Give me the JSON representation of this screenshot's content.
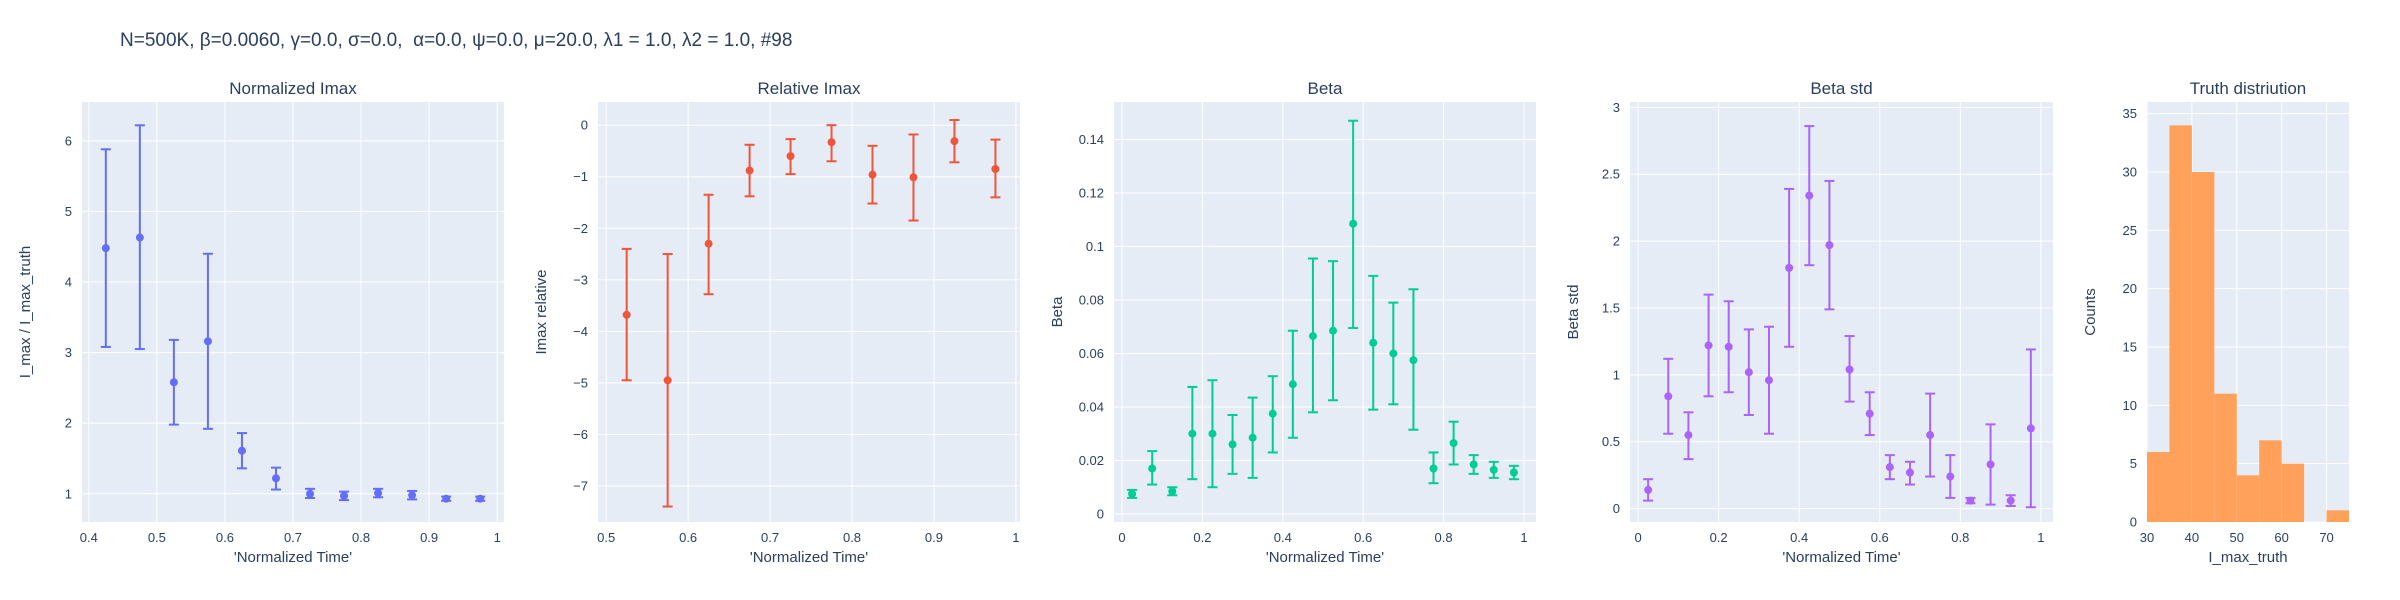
{
  "figure": {
    "title": "N=500K, β=0.0060, γ=0.0, σ=0.0,  α=0.0, ψ=0.0, μ=20.0, λ1 = 1.0, λ2 = 1.0, #98"
  },
  "style": {
    "plot_bg": "#e5ecf6",
    "grid": "#ffffff",
    "text": "#2a3f5f"
  },
  "chart_data": [
    {
      "type": "scatter",
      "title": "Normalized Imax",
      "xlabel": "'Normalized Time'",
      "ylabel": "I_max / I_max_truth",
      "color": "#636efa",
      "xlim": [
        0.39,
        1.01
      ],
      "ylim": [
        0.6,
        6.55
      ],
      "xticks": [
        0.4,
        0.5,
        0.6,
        0.7,
        0.8,
        0.9,
        1
      ],
      "xtick_labels": [
        "0.4",
        "0.5",
        "0.6",
        "0.7",
        "0.8",
        "0.9",
        "1"
      ],
      "yticks": [
        1,
        2,
        3,
        4,
        5,
        6
      ],
      "ytick_labels": [
        "1",
        "2",
        "3",
        "4",
        "5",
        "6"
      ],
      "error_bars": true,
      "points": [
        {
          "x": 0.425,
          "y": 4.48,
          "lo": 3.08,
          "hi": 5.88
        },
        {
          "x": 0.475,
          "y": 4.63,
          "lo": 3.05,
          "hi": 6.22
        },
        {
          "x": 0.525,
          "y": 2.58,
          "lo": 1.98,
          "hi": 3.18
        },
        {
          "x": 0.575,
          "y": 3.16,
          "lo": 1.92,
          "hi": 4.4
        },
        {
          "x": 0.625,
          "y": 1.61,
          "lo": 1.36,
          "hi": 1.86
        },
        {
          "x": 0.675,
          "y": 1.22,
          "lo": 1.06,
          "hi": 1.37
        },
        {
          "x": 0.725,
          "y": 1.0,
          "lo": 0.94,
          "hi": 1.07
        },
        {
          "x": 0.775,
          "y": 0.97,
          "lo": 0.91,
          "hi": 1.03
        },
        {
          "x": 0.825,
          "y": 1.01,
          "lo": 0.95,
          "hi": 1.07
        },
        {
          "x": 0.875,
          "y": 0.98,
          "lo": 0.92,
          "hi": 1.04
        },
        {
          "x": 0.925,
          "y": 0.93,
          "lo": 0.9,
          "hi": 0.96
        },
        {
          "x": 0.975,
          "y": 0.93,
          "lo": 0.9,
          "hi": 0.96
        }
      ]
    },
    {
      "type": "scatter",
      "title": "Relative Imax",
      "xlabel": "'Normalized Time'",
      "ylabel": "Imax relative",
      "color": "#ef553b",
      "xlim": [
        0.49,
        1.005
      ],
      "ylim": [
        -7.7,
        0.45
      ],
      "xticks": [
        0.5,
        0.6,
        0.7,
        0.8,
        0.9,
        1
      ],
      "xtick_labels": [
        "0.5",
        "0.6",
        "0.7",
        "0.8",
        "0.9",
        "1"
      ],
      "yticks": [
        -7,
        -6,
        -5,
        -4,
        -3,
        -2,
        -1,
        0
      ],
      "ytick_labels": [
        "−7",
        "−6",
        "−5",
        "−4",
        "−3",
        "−2",
        "−1",
        "0"
      ],
      "error_bars": true,
      "points": [
        {
          "x": 0.525,
          "y": -3.68,
          "lo": -4.95,
          "hi": -2.4
        },
        {
          "x": 0.575,
          "y": -4.95,
          "lo": -7.4,
          "hi": -2.5
        },
        {
          "x": 0.625,
          "y": -2.3,
          "lo": -3.28,
          "hi": -1.35
        },
        {
          "x": 0.675,
          "y": -0.88,
          "lo": -1.38,
          "hi": -0.38
        },
        {
          "x": 0.725,
          "y": -0.6,
          "lo": -0.95,
          "hi": -0.27
        },
        {
          "x": 0.775,
          "y": -0.33,
          "lo": -0.7,
          "hi": 0.0
        },
        {
          "x": 0.825,
          "y": -0.96,
          "lo": -1.52,
          "hi": -0.4
        },
        {
          "x": 0.875,
          "y": -1.01,
          "lo": -1.85,
          "hi": -0.18
        },
        {
          "x": 0.925,
          "y": -0.31,
          "lo": -0.72,
          "hi": 0.1
        },
        {
          "x": 0.975,
          "y": -0.85,
          "lo": -1.4,
          "hi": -0.28
        }
      ]
    },
    {
      "type": "scatter",
      "title": "Beta",
      "xlabel": "'Normalized Time'",
      "ylabel": "Beta",
      "color": "#00cc96",
      "xlim": [
        -0.02,
        1.03
      ],
      "ylim": [
        -0.003,
        0.154
      ],
      "xticks": [
        0,
        0.2,
        0.4,
        0.6,
        0.8,
        1
      ],
      "xtick_labels": [
        "0",
        "0.2",
        "0.4",
        "0.6",
        "0.8",
        "1"
      ],
      "yticks": [
        0,
        0.02,
        0.04,
        0.06,
        0.08,
        0.1,
        0.12,
        0.14
      ],
      "ytick_labels": [
        "0",
        "0.02",
        "0.04",
        "0.06",
        "0.08",
        "0.1",
        "0.12",
        "0.14"
      ],
      "error_bars": true,
      "points": [
        {
          "x": 0.025,
          "y": 0.0075,
          "lo": 0.006,
          "hi": 0.009
        },
        {
          "x": 0.075,
          "y": 0.017,
          "lo": 0.011,
          "hi": 0.0235
        },
        {
          "x": 0.125,
          "y": 0.0085,
          "lo": 0.007,
          "hi": 0.01
        },
        {
          "x": 0.175,
          "y": 0.03,
          "lo": 0.013,
          "hi": 0.0475
        },
        {
          "x": 0.225,
          "y": 0.03,
          "lo": 0.01,
          "hi": 0.05
        },
        {
          "x": 0.275,
          "y": 0.026,
          "lo": 0.015,
          "hi": 0.037
        },
        {
          "x": 0.325,
          "y": 0.0285,
          "lo": 0.0135,
          "hi": 0.0435
        },
        {
          "x": 0.375,
          "y": 0.0375,
          "lo": 0.023,
          "hi": 0.0515
        },
        {
          "x": 0.425,
          "y": 0.0485,
          "lo": 0.0285,
          "hi": 0.0685
        },
        {
          "x": 0.475,
          "y": 0.0665,
          "lo": 0.038,
          "hi": 0.0955
        },
        {
          "x": 0.525,
          "y": 0.0685,
          "lo": 0.0425,
          "hi": 0.0945
        },
        {
          "x": 0.575,
          "y": 0.1085,
          "lo": 0.0695,
          "hi": 0.147
        },
        {
          "x": 0.625,
          "y": 0.064,
          "lo": 0.039,
          "hi": 0.089
        },
        {
          "x": 0.675,
          "y": 0.06,
          "lo": 0.041,
          "hi": 0.079
        },
        {
          "x": 0.725,
          "y": 0.0575,
          "lo": 0.0315,
          "hi": 0.084
        },
        {
          "x": 0.775,
          "y": 0.017,
          "lo": 0.0115,
          "hi": 0.023
        },
        {
          "x": 0.825,
          "y": 0.0265,
          "lo": 0.0185,
          "hi": 0.0345
        },
        {
          "x": 0.875,
          "y": 0.0185,
          "lo": 0.015,
          "hi": 0.022
        },
        {
          "x": 0.925,
          "y": 0.0165,
          "lo": 0.0135,
          "hi": 0.0195
        },
        {
          "x": 0.975,
          "y": 0.0155,
          "lo": 0.013,
          "hi": 0.018
        }
      ]
    },
    {
      "type": "scatter",
      "title": "Beta std",
      "xlabel": "'Normalized Time'",
      "ylabel": "Beta std",
      "color": "#ab63fa",
      "xlim": [
        -0.02,
        1.03
      ],
      "ylim": [
        -0.1,
        3.04
      ],
      "xticks": [
        0,
        0.2,
        0.4,
        0.6,
        0.8,
        1
      ],
      "xtick_labels": [
        "0",
        "0.2",
        "0.4",
        "0.6",
        "0.8",
        "1"
      ],
      "yticks": [
        0,
        0.5,
        1,
        1.5,
        2,
        2.5,
        3
      ],
      "ytick_labels": [
        "0",
        "0.5",
        "1",
        "1.5",
        "2",
        "2.5",
        "3"
      ],
      "error_bars": true,
      "points": [
        {
          "x": 0.025,
          "y": 0.14,
          "lo": 0.06,
          "hi": 0.22
        },
        {
          "x": 0.075,
          "y": 0.84,
          "lo": 0.56,
          "hi": 1.12
        },
        {
          "x": 0.125,
          "y": 0.55,
          "lo": 0.37,
          "hi": 0.72
        },
        {
          "x": 0.175,
          "y": 1.22,
          "lo": 0.84,
          "hi": 1.6
        },
        {
          "x": 0.225,
          "y": 1.21,
          "lo": 0.87,
          "hi": 1.55
        },
        {
          "x": 0.275,
          "y": 1.02,
          "lo": 0.7,
          "hi": 1.34
        },
        {
          "x": 0.325,
          "y": 0.96,
          "lo": 0.56,
          "hi": 1.36
        },
        {
          "x": 0.375,
          "y": 1.8,
          "lo": 1.21,
          "hi": 2.39
        },
        {
          "x": 0.425,
          "y": 2.34,
          "lo": 1.82,
          "hi": 2.86
        },
        {
          "x": 0.475,
          "y": 1.97,
          "lo": 1.49,
          "hi": 2.45
        },
        {
          "x": 0.525,
          "y": 1.04,
          "lo": 0.8,
          "hi": 1.29
        },
        {
          "x": 0.575,
          "y": 0.71,
          "lo": 0.55,
          "hi": 0.87
        },
        {
          "x": 0.625,
          "y": 0.31,
          "lo": 0.22,
          "hi": 0.4
        },
        {
          "x": 0.675,
          "y": 0.27,
          "lo": 0.18,
          "hi": 0.35
        },
        {
          "x": 0.725,
          "y": 0.55,
          "lo": 0.24,
          "hi": 0.86
        },
        {
          "x": 0.775,
          "y": 0.24,
          "lo": 0.08,
          "hi": 0.4
        },
        {
          "x": 0.825,
          "y": 0.06,
          "lo": 0.04,
          "hi": 0.08
        },
        {
          "x": 0.875,
          "y": 0.33,
          "lo": 0.03,
          "hi": 0.63
        },
        {
          "x": 0.925,
          "y": 0.06,
          "lo": 0.02,
          "hi": 0.1
        },
        {
          "x": 0.975,
          "y": 0.6,
          "lo": 0.01,
          "hi": 1.19
        }
      ]
    },
    {
      "type": "histogram",
      "title": "Truth distriution",
      "xlabel": "I_max_truth",
      "ylabel": "Counts",
      "color": "#ffa15a",
      "xlim": [
        30,
        75
      ],
      "ylim": [
        0,
        36
      ],
      "xticks": [
        30,
        40,
        50,
        60,
        70
      ],
      "xtick_labels": [
        "30",
        "40",
        "50",
        "60",
        "70"
      ],
      "yticks": [
        0,
        5,
        10,
        15,
        20,
        25,
        30,
        35
      ],
      "ytick_labels": [
        "0",
        "5",
        "10",
        "15",
        "20",
        "25",
        "30",
        "35"
      ],
      "bin_width": 5,
      "bins": [
        {
          "x0": 30,
          "x1": 35,
          "count": 6
        },
        {
          "x0": 35,
          "x1": 40,
          "count": 34
        },
        {
          "x0": 40,
          "x1": 45,
          "count": 30
        },
        {
          "x0": 45,
          "x1": 50,
          "count": 11
        },
        {
          "x0": 50,
          "x1": 55,
          "count": 4
        },
        {
          "x0": 55,
          "x1": 60,
          "count": 7
        },
        {
          "x0": 60,
          "x1": 65,
          "count": 5
        },
        {
          "x0": 65,
          "x1": 70,
          "count": 0
        },
        {
          "x0": 70,
          "x1": 75,
          "count": 1
        }
      ]
    }
  ]
}
